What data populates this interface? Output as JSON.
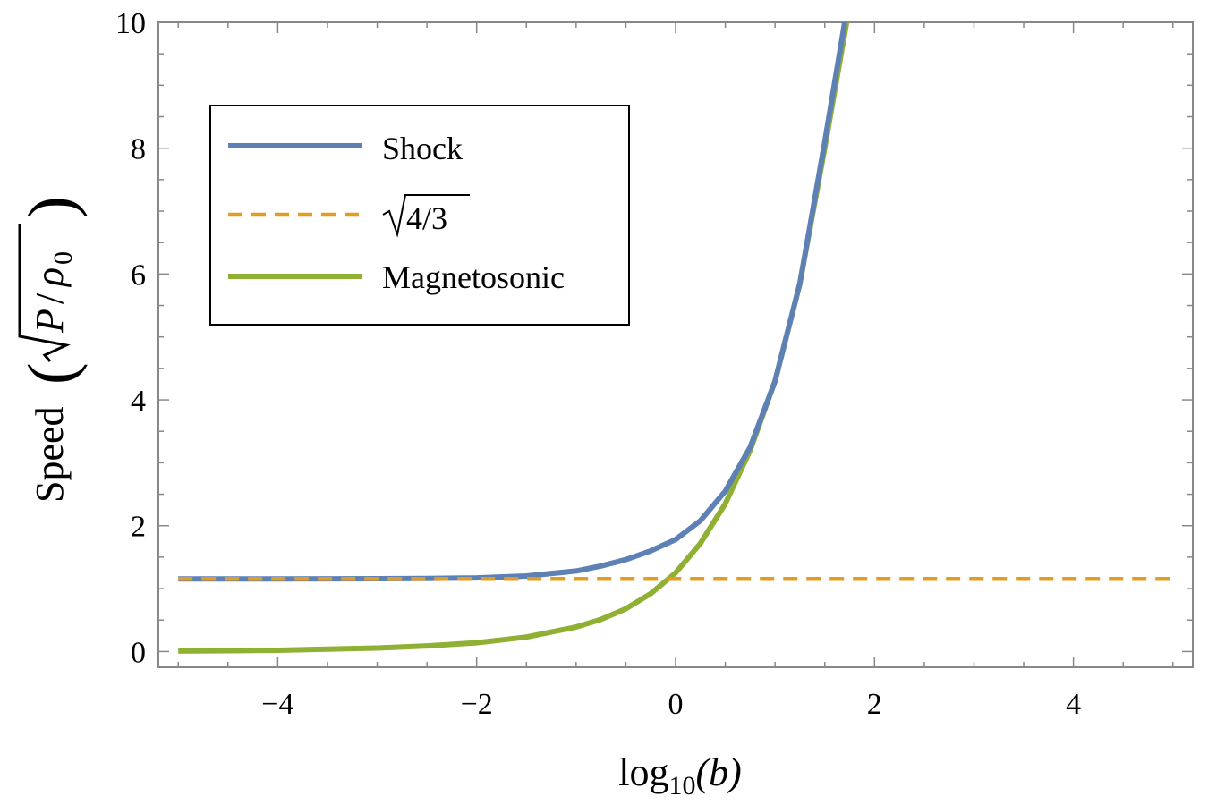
{
  "chart_data": {
    "type": "line",
    "title": "",
    "xlabel": "log10(b)",
    "xlabel_main": "log",
    "xlabel_sub": "10",
    "xlabel_arg": "(b)",
    "ylabel": "Speed (√(P/ρ0))",
    "ylabel_word": "Speed",
    "ylabel_P": "P",
    "ylabel_slash": "/",
    "ylabel_rho": "ρ",
    "ylabel_rho_sub": "0",
    "xlim": [
      -5.2,
      5.2
    ],
    "ylim": [
      -0.25,
      10
    ],
    "x_ticks": [
      -4,
      -2,
      0,
      2,
      4
    ],
    "y_ticks": [
      0,
      2,
      4,
      6,
      8,
      10
    ],
    "x_tick_labels": [
      "−4",
      "−2",
      "0",
      "2",
      "4"
    ],
    "y_tick_labels": [
      "0",
      "2",
      "4",
      "6",
      "8",
      "10"
    ],
    "legend_position": "top-left",
    "series": [
      {
        "name": "Shock",
        "color": "#5e81b5",
        "style": "solid",
        "x": [
          -5,
          -4,
          -3,
          -2.5,
          -2,
          -1.5,
          -1,
          -0.75,
          -0.5,
          -0.25,
          0,
          0.25,
          0.5,
          0.75,
          1,
          1.25,
          1.5,
          1.7
        ],
        "values": [
          1.155,
          1.155,
          1.157,
          1.16,
          1.17,
          1.2,
          1.28,
          1.36,
          1.46,
          1.6,
          1.78,
          2.08,
          2.55,
          3.25,
          4.3,
          5.85,
          8.1,
          10.0
        ]
      },
      {
        "name": "√4/3",
        "legend_radical": "√",
        "legend_rest": "4/3",
        "color": "#e19c24",
        "style": "dashed",
        "x": [
          -5,
          5
        ],
        "values": [
          1.1547,
          1.1547
        ]
      },
      {
        "name": "Magnetosonic",
        "color": "#8fb032",
        "style": "solid",
        "x": [
          -5,
          -4,
          -3,
          -2.5,
          -2,
          -1.5,
          -1,
          -0.75,
          -0.5,
          -0.25,
          0,
          0.25,
          0.5,
          0.75,
          1,
          1.25,
          1.5,
          1.72
        ],
        "values": [
          0.007,
          0.02,
          0.055,
          0.09,
          0.14,
          0.23,
          0.39,
          0.51,
          0.68,
          0.92,
          1.25,
          1.72,
          2.35,
          3.2,
          4.3,
          5.85,
          8.0,
          10.0
        ]
      }
    ]
  }
}
